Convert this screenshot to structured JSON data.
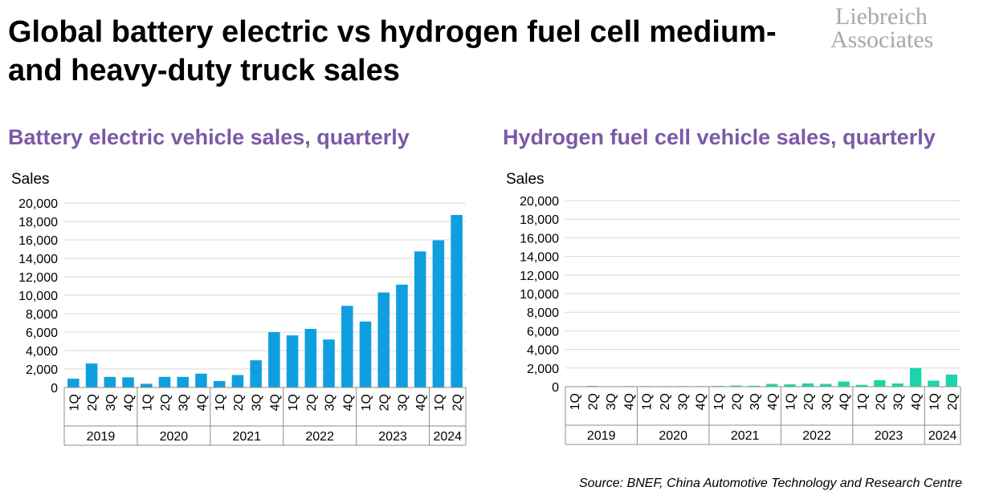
{
  "title": "Global battery electric vs hydrogen fuel cell medium- and heavy-duty truck sales",
  "logo": {
    "line1": "Liebreich",
    "line2": "Associates"
  },
  "source": "Source: BNEF, China Automotive Technology and Research Centre",
  "colors": {
    "bev": "#0f9fdf",
    "fcv": "#1cd5ac",
    "subtitle": "#7b5aa6",
    "grid": "#d9d9d9"
  },
  "chart_data": [
    {
      "type": "bar",
      "title": "Battery electric vehicle sales, quarterly",
      "ylabel": "Sales",
      "ylim": [
        0,
        20000
      ],
      "yticks": [
        0,
        2000,
        4000,
        6000,
        8000,
        10000,
        12000,
        14000,
        16000,
        18000,
        20000
      ],
      "ytick_labels": [
        "0",
        "2,000",
        "4,000",
        "6,000",
        "8,000",
        "10,000",
        "12,000",
        "14,000",
        "16,000",
        "18,000",
        "20,000"
      ],
      "categories": [
        "1Q",
        "2Q",
        "3Q",
        "4Q",
        "1Q",
        "2Q",
        "3Q",
        "4Q",
        "1Q",
        "2Q",
        "3Q",
        "4Q",
        "1Q",
        "2Q",
        "3Q",
        "4Q",
        "1Q",
        "2Q",
        "3Q",
        "4Q",
        "1Q",
        "2Q"
      ],
      "year_groups": [
        {
          "year": "2019",
          "count": 4
        },
        {
          "year": "2020",
          "count": 4
        },
        {
          "year": "2021",
          "count": 4
        },
        {
          "year": "2022",
          "count": 4
        },
        {
          "year": "2023",
          "count": 4
        },
        {
          "year": "2024",
          "count": 2
        }
      ],
      "series": [
        {
          "name": "Battery electric",
          "values": [
            950,
            2600,
            1150,
            1100,
            400,
            1150,
            1150,
            1500,
            700,
            1350,
            2950,
            6000,
            5650,
            6350,
            5200,
            8850,
            7150,
            10300,
            11150,
            14750,
            15950,
            18700
          ]
        }
      ]
    },
    {
      "type": "bar",
      "title": "Hydrogen fuel cell vehicle sales, quarterly",
      "ylabel": "Sales",
      "ylim": [
        0,
        20000
      ],
      "yticks": [
        0,
        2000,
        4000,
        6000,
        8000,
        10000,
        12000,
        14000,
        16000,
        18000,
        20000
      ],
      "ytick_labels": [
        "0",
        "2,000",
        "4,000",
        "6,000",
        "8,000",
        "10,000",
        "12,000",
        "14,000",
        "16,000",
        "18,000",
        "20,000"
      ],
      "categories": [
        "1Q",
        "2Q",
        "3Q",
        "4Q",
        "1Q",
        "2Q",
        "3Q",
        "4Q",
        "1Q",
        "2Q",
        "3Q",
        "4Q",
        "1Q",
        "2Q",
        "3Q",
        "4Q",
        "1Q",
        "2Q",
        "3Q",
        "4Q",
        "1Q",
        "2Q"
      ],
      "year_groups": [
        {
          "year": "2019",
          "count": 4
        },
        {
          "year": "2020",
          "count": 4
        },
        {
          "year": "2021",
          "count": 4
        },
        {
          "year": "2022",
          "count": 4
        },
        {
          "year": "2023",
          "count": 4
        },
        {
          "year": "2024",
          "count": 2
        }
      ],
      "series": [
        {
          "name": "Hydrogen fuel cell",
          "values": [
            30,
            80,
            30,
            60,
            60,
            60,
            60,
            60,
            80,
            120,
            100,
            300,
            250,
            350,
            300,
            550,
            200,
            700,
            350,
            2000,
            650,
            1300
          ]
        }
      ]
    }
  ]
}
